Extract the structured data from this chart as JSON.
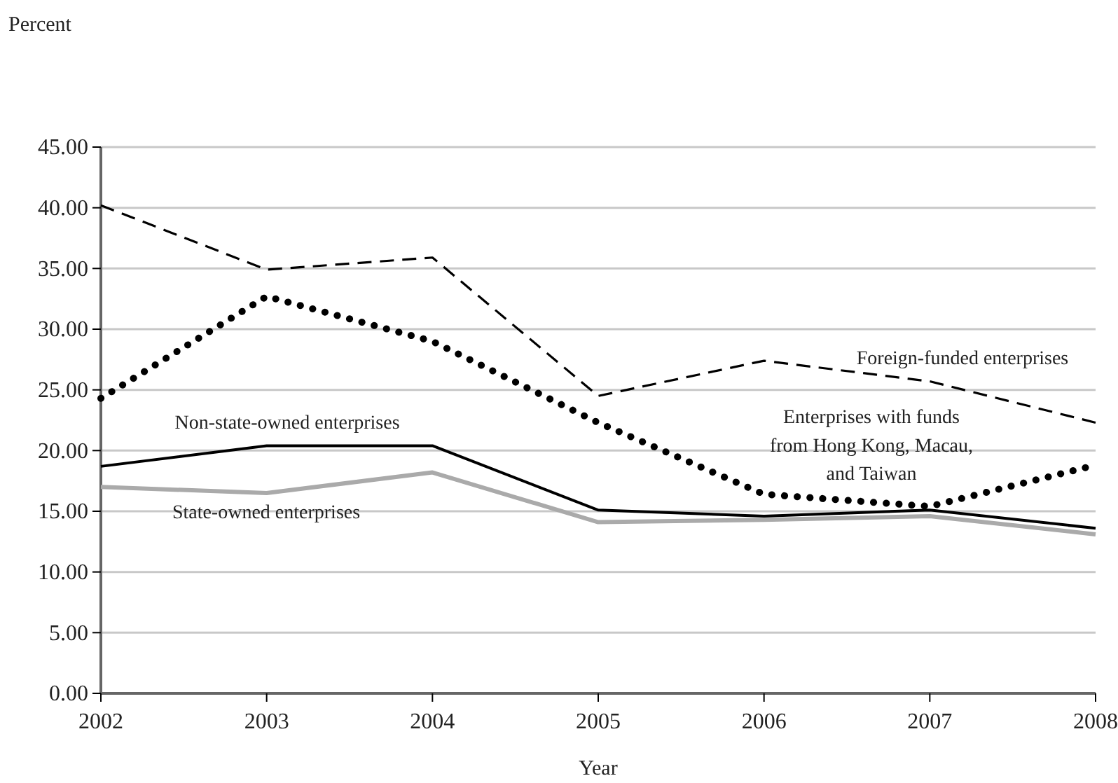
{
  "chart_data": {
    "type": "line",
    "ylabel": "Percent",
    "xlabel": "Year",
    "categories": [
      "2002",
      "2003",
      "2004",
      "2005",
      "2006",
      "2007",
      "2008"
    ],
    "series": [
      {
        "name": "Foreign-funded enterprises",
        "color": "#000000",
        "line_style": "dashed",
        "values": [
          40.2,
          34.9,
          35.9,
          24.5,
          27.4,
          25.7,
          22.3
        ]
      },
      {
        "name": "Enterprises with funds from Hong Kong, Macau, and Taiwan",
        "color": "#000000",
        "line_style": "dotted",
        "values": [
          24.3,
          32.7,
          29.0,
          22.3,
          16.4,
          15.4,
          18.8
        ]
      },
      {
        "name": "Non-state-owned enterprises",
        "color": "#000000",
        "line_style": "solid",
        "values": [
          18.7,
          20.4,
          20.4,
          15.1,
          14.6,
          15.1,
          13.6
        ]
      },
      {
        "name": "State-owned enterprises",
        "color": "#aaaaaa",
        "line_style": "solid",
        "values": [
          17.0,
          16.5,
          18.2,
          14.1,
          14.3,
          14.6,
          13.1
        ]
      }
    ],
    "ylim": [
      0,
      45
    ],
    "yticks": [
      {
        "value": 0,
        "label": "0.00"
      },
      {
        "value": 5,
        "label": "5.00"
      },
      {
        "value": 10,
        "label": "10.00"
      },
      {
        "value": 15,
        "label": "15.00"
      },
      {
        "value": 20,
        "label": "20.00"
      },
      {
        "value": 25,
        "label": "25.00"
      },
      {
        "value": 30,
        "label": "30.00"
      },
      {
        "value": 35,
        "label": "35.00"
      },
      {
        "value": 40,
        "label": "40.00"
      },
      {
        "value": 45,
        "label": "45.00"
      }
    ],
    "grid": "y",
    "marker": "none"
  }
}
